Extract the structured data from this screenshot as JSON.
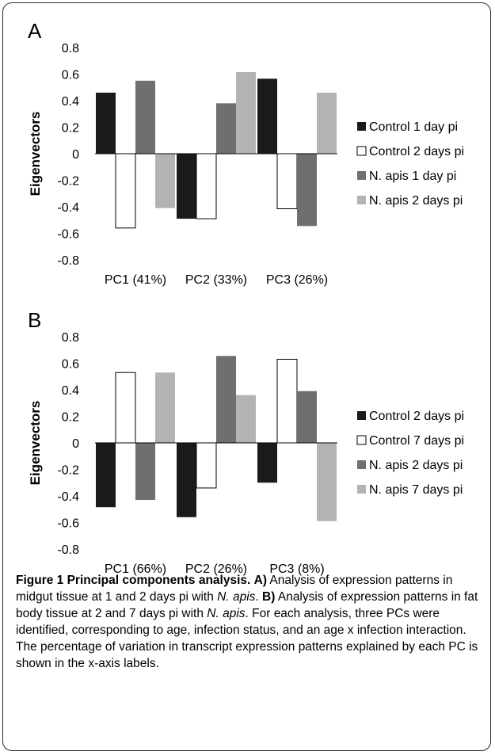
{
  "colors": {
    "series": [
      "#1a1a1a",
      "#ffffff",
      "#6f6f6f",
      "#b3b3b3"
    ],
    "outline": "#000000",
    "caption_bold": "#000000"
  },
  "chart_data": [
    {
      "panel_label": "A",
      "type": "bar",
      "ylabel": "Eigenvectors",
      "ylim": [
        -0.8,
        0.8
      ],
      "yticks": [
        "0.8",
        "0.6",
        "0.4",
        "0.2",
        "0",
        "-0.2",
        "-0.4",
        "-0.6",
        "-0.8"
      ],
      "categories": [
        "PC1 (41%)",
        "PC2 (33%)",
        "PC3 (26%)"
      ],
      "series": [
        {
          "name": "Control 1 day pi",
          "values": [
            0.46,
            -0.49,
            0.565
          ]
        },
        {
          "name": "Control 2 days pi",
          "values": [
            -0.56,
            -0.49,
            -0.415
          ]
        },
        {
          "name": "N. apis 1 day pi",
          "values": [
            0.55,
            0.38,
            -0.545
          ]
        },
        {
          "name": "N. apis 2 days pi",
          "values": [
            -0.41,
            0.615,
            0.46
          ]
        }
      ],
      "legend_position": "right",
      "grid": false
    },
    {
      "panel_label": "B",
      "type": "bar",
      "ylabel": "Eigenvectors",
      "ylim": [
        -0.8,
        0.8
      ],
      "yticks": [
        "0.8",
        "0.6",
        "0.4",
        "0.2",
        "0",
        "-0.2",
        "-0.4",
        "-0.6",
        "-0.8"
      ],
      "categories": [
        "PC1 (66%)",
        "PC2 (26%)",
        "PC3 (8%)"
      ],
      "series": [
        {
          "name": "Control 2 days pi",
          "values": [
            -0.485,
            -0.56,
            -0.3
          ]
        },
        {
          "name": "Control 7 days pi",
          "values": [
            0.53,
            -0.34,
            0.63
          ]
        },
        {
          "name": "N. apis 2 days pi",
          "values": [
            -0.43,
            0.655,
            0.39
          ]
        },
        {
          "name": "N. apis 7 days pi",
          "values": [
            0.53,
            0.36,
            -0.59
          ]
        }
      ],
      "legend_position": "right",
      "grid": false
    }
  ],
  "caption": {
    "figure_label": "Figure 1 Principal components analysis.",
    "a_label": "A)",
    "a_text": " Analysis of expression patterns in midgut tissue at 1 and 2 days pi with ",
    "a_species": "N. apis",
    "a_end": ".",
    "b_label": "B)",
    "b_text": " Analysis of expression patterns in fat body tissue at 2 and 7 days pi with ",
    "b_species": "N. apis",
    "b_end": ".",
    "rest": " For each analysis, three PCs were identified, corresponding to age, infection status, and an age x infection interaction. The percentage of variation in transcript expression patterns explained by each PC is shown in the x-axis labels."
  }
}
